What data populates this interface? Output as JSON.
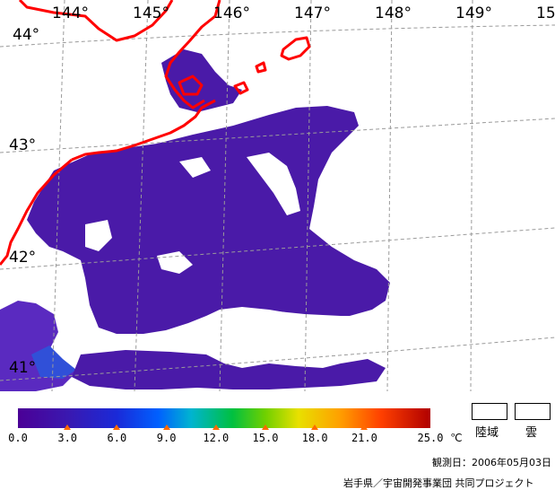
{
  "map": {
    "longitude_labels": [
      "144°",
      "145°",
      "146°",
      "147°",
      "148°",
      "149°",
      "15"
    ],
    "latitude_labels": [
      "44°",
      "43°",
      "42°",
      "41°"
    ],
    "colors": {
      "coastline": "#ff0000",
      "grid": "#aaaaaa",
      "sst_main": "#4a1aa8",
      "sst_light": "#5a2ac0",
      "sst_blue": "#3050d8"
    }
  },
  "colorbar": {
    "min": 0.0,
    "max": 25.0,
    "ticks": [
      "0.0",
      "3.0",
      "6.0",
      "9.0",
      "12.0",
      "15.0",
      "18.0",
      "21.0",
      "25.0"
    ],
    "unit": "℃"
  },
  "legend": {
    "land_label": "陸域",
    "cloud_label": "雲"
  },
  "footer": {
    "observation_date": "観測日：2006年05月03日",
    "credit": "岩手県／宇宙開発事業団 共同プロジェクト"
  }
}
